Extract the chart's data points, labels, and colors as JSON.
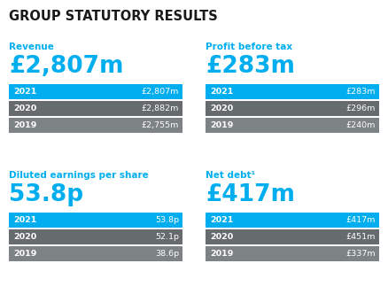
{
  "title": "GROUP STATUTORY RESULTS",
  "title_color": "#1a1a1a",
  "cyan_color": "#00AEEF",
  "dark_gray": "#666b6e",
  "mid_gray": "#7d8285",
  "white": "#ffffff",
  "bg_color": "#ffffff",
  "sections": [
    {
      "label": "Revenue",
      "big_value": "£2,807m",
      "rows": [
        {
          "year": "2021",
          "value": "£2,807m",
          "highlight": true
        },
        {
          "year": "2020",
          "value": "£2,882m",
          "highlight": false
        },
        {
          "year": "2019",
          "value": "£2,755m",
          "highlight": false
        }
      ],
      "col": 0,
      "row": 0
    },
    {
      "label": "Profit before tax",
      "big_value": "£283m",
      "rows": [
        {
          "year": "2021",
          "value": "£283m",
          "highlight": true
        },
        {
          "year": "2020",
          "value": "£296m",
          "highlight": false
        },
        {
          "year": "2019",
          "value": "£240m",
          "highlight": false
        }
      ],
      "col": 1,
      "row": 0
    },
    {
      "label": "Diluted earnings per share",
      "big_value": "53.8p",
      "rows": [
        {
          "year": "2021",
          "value": "53.8p",
          "highlight": true
        },
        {
          "year": "2020",
          "value": "52.1p",
          "highlight": false
        },
        {
          "year": "2019",
          "value": "38.6p",
          "highlight": false
        }
      ],
      "col": 0,
      "row": 1
    },
    {
      "label": "Net debt¹",
      "big_value": "£417m",
      "rows": [
        {
          "year": "2021",
          "value": "£417m",
          "highlight": true
        },
        {
          "year": "2020",
          "value": "£451m",
          "highlight": false
        },
        {
          "year": "2019",
          "value": "£337m",
          "highlight": false
        }
      ],
      "col": 1,
      "row": 1
    }
  ]
}
